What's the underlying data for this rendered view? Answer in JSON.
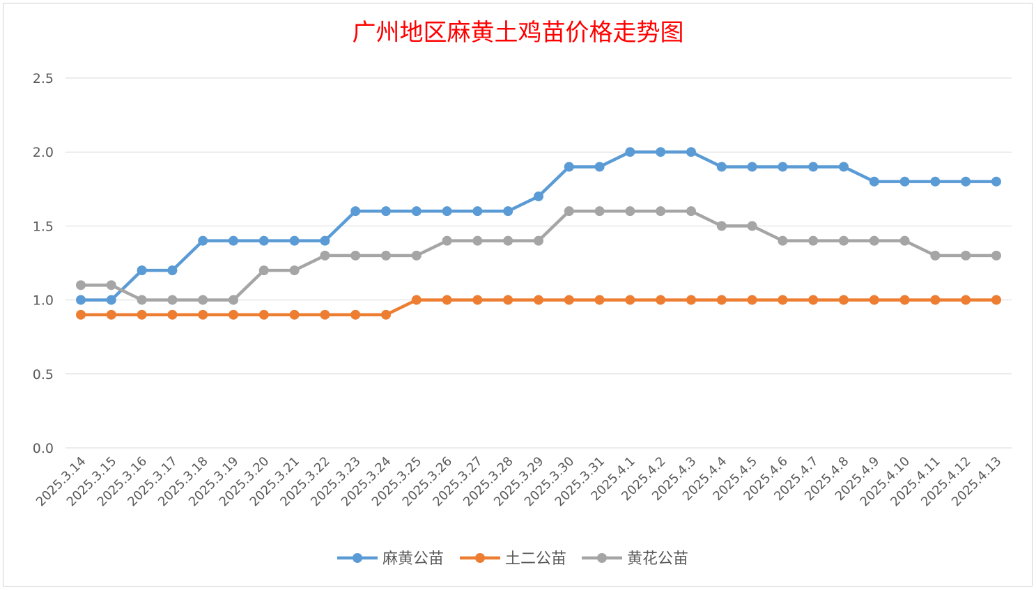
{
  "chart_data": {
    "type": "line",
    "title": "广州地区麻黄土鸡苗价格走势图",
    "xlabel": "",
    "ylabel": "",
    "ylim": [
      0,
      2.5
    ],
    "yticks": [
      "0.0",
      "0.5",
      "1.0",
      "1.5",
      "2.0",
      "2.5"
    ],
    "grid": true,
    "legend_position": "bottom",
    "categories": [
      "2025.3.14",
      "2025.3.15",
      "2025.3.16",
      "2025.3.17",
      "2025.3.18",
      "2025.3.19",
      "2025.3.20",
      "2025.3.21",
      "2025.3.22",
      "2025.3.23",
      "2025.3.24",
      "2025.3.25",
      "2025.3.26",
      "2025.3.27",
      "2025.3.28",
      "2025.3.29",
      "2025.3.30",
      "2025.3.31",
      "2025.4.1",
      "2025.4.2",
      "2025.4.3",
      "2025.4.4",
      "2025.4.5",
      "2025.4.6",
      "2025.4.7",
      "2025.4.8",
      "2025.4.9",
      "2025.4.10",
      "2025.4.11",
      "2025.4.12",
      "2025.4.13"
    ],
    "series": [
      {
        "name": "麻黄公苗",
        "color": "#5b9bd5",
        "values": [
          1.0,
          1.0,
          1.2,
          1.2,
          1.4,
          1.4,
          1.4,
          1.4,
          1.4,
          1.6,
          1.6,
          1.6,
          1.6,
          1.6,
          1.6,
          1.7,
          1.9,
          1.9,
          2.0,
          2.0,
          2.0,
          1.9,
          1.9,
          1.9,
          1.9,
          1.9,
          1.8,
          1.8,
          1.8,
          1.8,
          1.8
        ]
      },
      {
        "name": "土二公苗",
        "color": "#ed7d31",
        "values": [
          0.9,
          0.9,
          0.9,
          0.9,
          0.9,
          0.9,
          0.9,
          0.9,
          0.9,
          0.9,
          0.9,
          1.0,
          1.0,
          1.0,
          1.0,
          1.0,
          1.0,
          1.0,
          1.0,
          1.0,
          1.0,
          1.0,
          1.0,
          1.0,
          1.0,
          1.0,
          1.0,
          1.0,
          1.0,
          1.0,
          1.0
        ]
      },
      {
        "name": "黄花公苗",
        "color": "#a5a5a5",
        "values": [
          1.1,
          1.1,
          1.0,
          1.0,
          1.0,
          1.0,
          1.2,
          1.2,
          1.3,
          1.3,
          1.3,
          1.3,
          1.4,
          1.4,
          1.4,
          1.4,
          1.6,
          1.6,
          1.6,
          1.6,
          1.6,
          1.5,
          1.5,
          1.4,
          1.4,
          1.4,
          1.4,
          1.4,
          1.3,
          1.3,
          1.3
        ]
      }
    ]
  }
}
